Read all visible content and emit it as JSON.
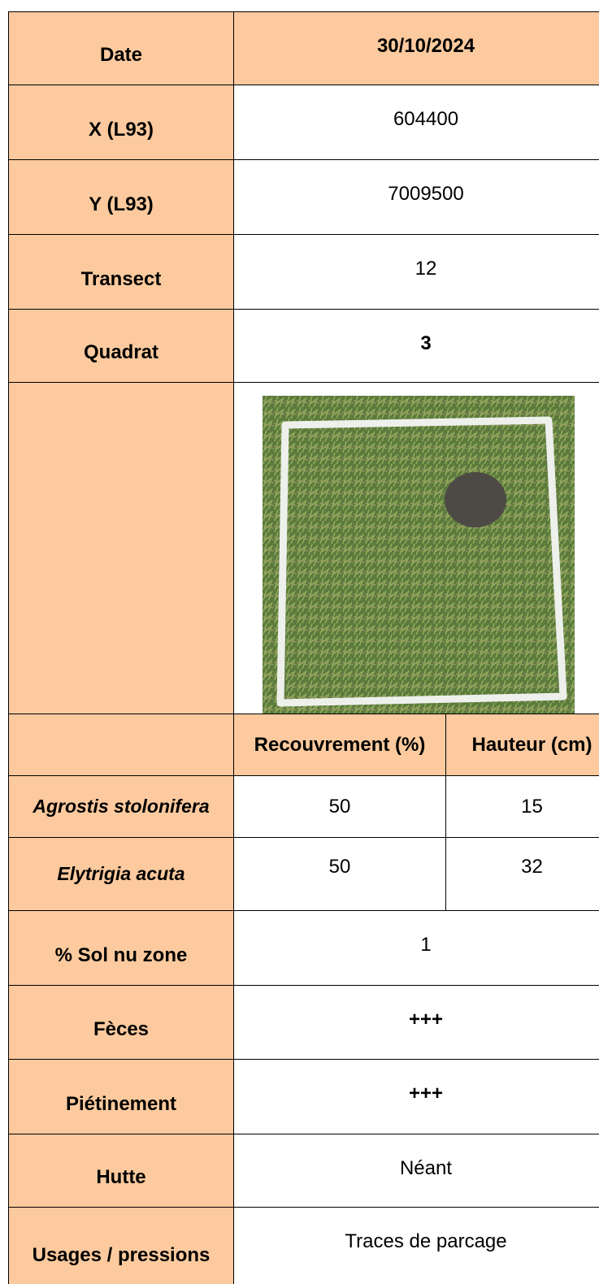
{
  "table": {
    "rows": [
      {
        "label": "Date",
        "value": "30/10/2024",
        "value_bold": true,
        "shaded": true
      },
      {
        "label": "X (L93)",
        "value": 604400
      },
      {
        "label": "Y (L93)",
        "value": 7009500
      },
      {
        "label": "Transect",
        "value": 12
      },
      {
        "label": "Quadrat",
        "value": 3,
        "value_bold": true
      }
    ],
    "species_table": {
      "columns": [
        "Recouvrement (%)",
        "Hauteur (cm)"
      ],
      "species": [
        {
          "name": "Agrostis stolonifera",
          "recouvrement": 50,
          "hauteur": 15
        },
        {
          "name": "Elytrigia acuta",
          "recouvrement": 50,
          "hauteur": 32
        }
      ]
    },
    "rows_after": [
      {
        "label": "% Sol nu zone",
        "value": 1
      },
      {
        "label": "Fèces",
        "value": "+++",
        "value_bold": true
      },
      {
        "label": "Piétinement",
        "value": "+++",
        "value_bold": true
      },
      {
        "label": "Hutte",
        "value": "Néant"
      },
      {
        "label": "Usages / pressions",
        "value": "Traces de parcage"
      }
    ]
  }
}
